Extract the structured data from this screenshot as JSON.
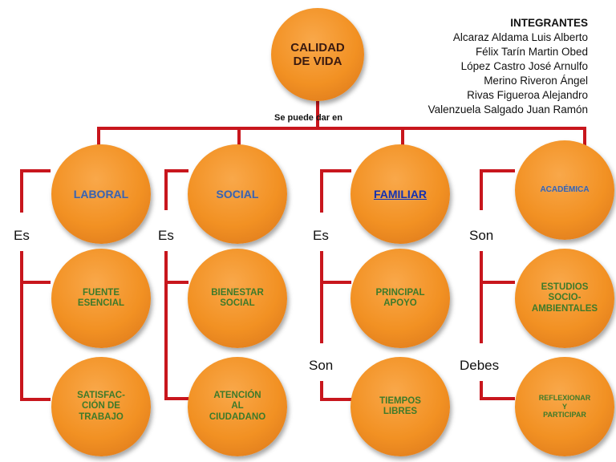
{
  "root": "CALIDAD\nDE VIDA",
  "edge_label": "Se puede dar en",
  "members": {
    "title": "INTEGRANTES",
    "names": [
      "Alcaraz Aldama Luis Alberto",
      "Félix Tarín Martin Obed",
      "López Castro José Arnulfo",
      "Merino Riveron Ángel",
      "Rivas Figueroa Alejandro",
      "Valenzuela Salgado Juan Ramón"
    ]
  },
  "columns": [
    {
      "category": "LABORAL",
      "connectors": [
        "Es"
      ],
      "items": [
        "FUENTE\nESENCIAL",
        "SATISFAC-\nCIÓN DE\nTRABAJO"
      ]
    },
    {
      "category": "SOCIAL",
      "connectors": [
        "Es"
      ],
      "items": [
        "BIENESTAR\nSOCIAL",
        "ATENCIÓN\nAL\nCIUDADANO"
      ]
    },
    {
      "category": "FAMILIAR",
      "connectors": [
        "Es",
        "Son"
      ],
      "items": [
        "PRINCIPAL\nAPOYO",
        "TIEMPOS\nLIBRES"
      ]
    },
    {
      "category": "ACADÉMICA",
      "connectors": [
        "Son",
        "Debes"
      ],
      "items": [
        "ESTUDIOS\nSOCIO-\nAMBIENTALES",
        "REFLEXIONAR\nY\nPARTICIPAR"
      ]
    }
  ],
  "colors": {
    "line": "#c8161d",
    "node": "#f29123",
    "category_text": "#3f62a8",
    "item_text": "#3d7a2a"
  }
}
